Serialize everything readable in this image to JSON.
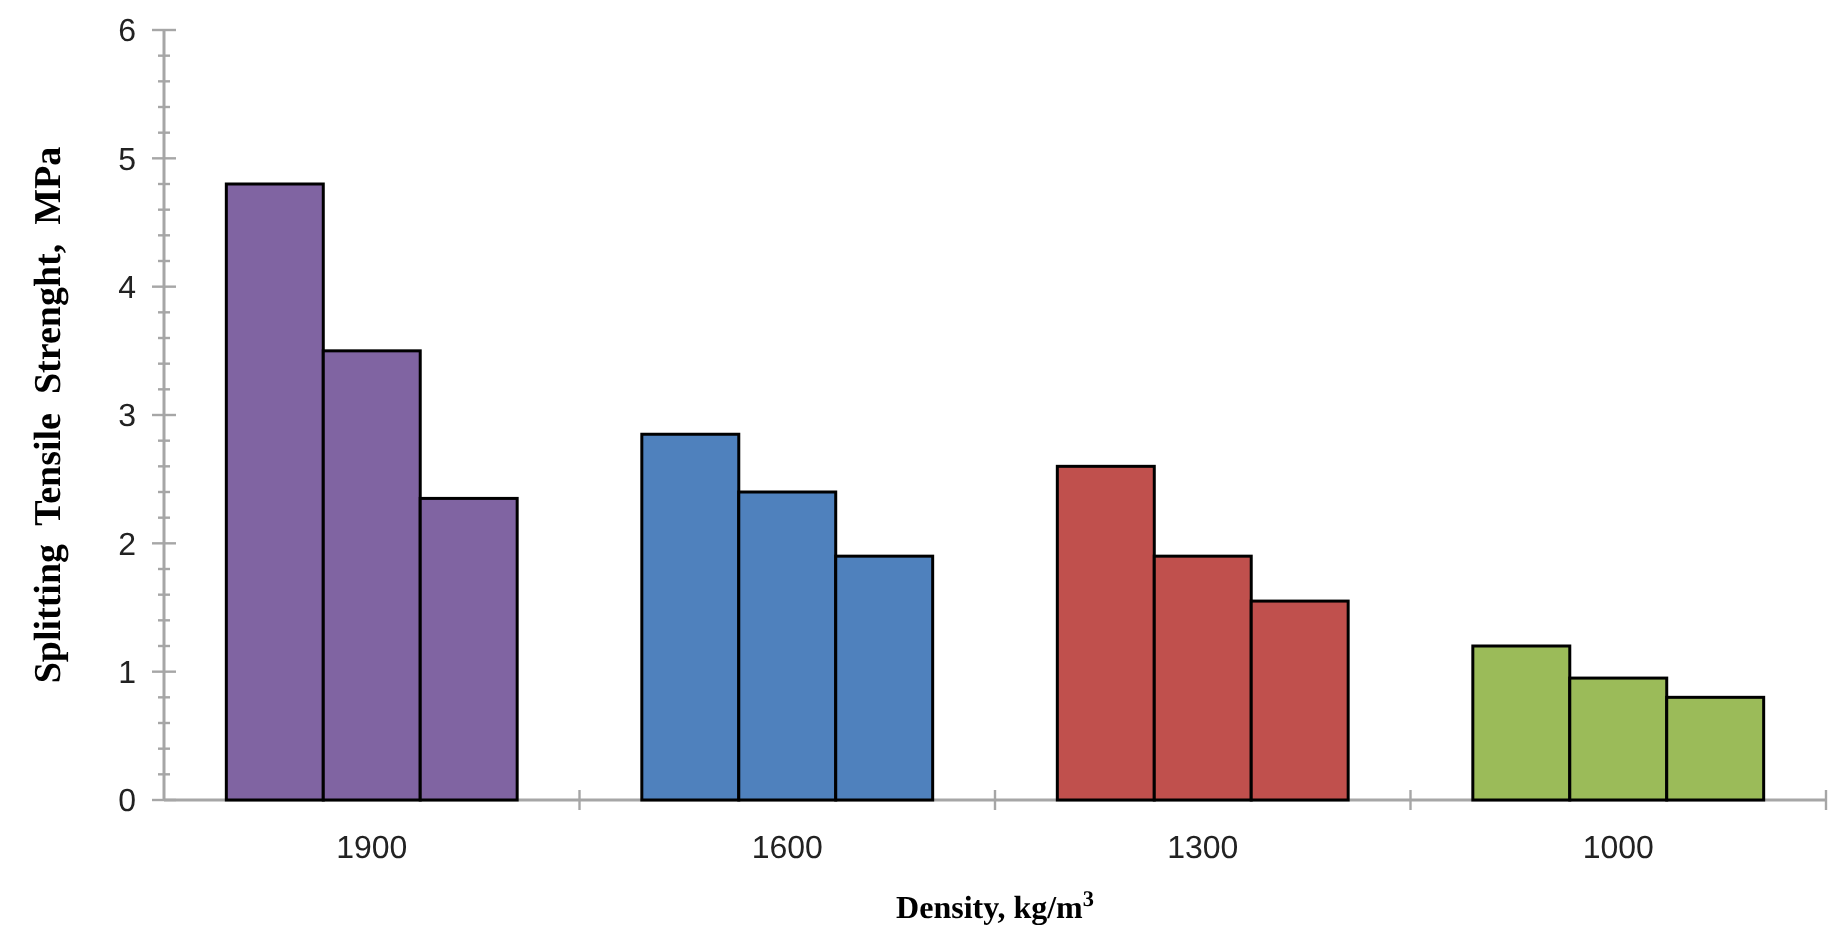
{
  "chart_data": {
    "type": "bar",
    "xlabel": "Density, kg/m$^{3}$",
    "ylabel": "Splitting  Tensile  Strenght,  MPa",
    "categories": [
      "1900",
      "1600",
      "1300",
      "1000"
    ],
    "series": [
      {
        "colors": [
          "#8064a2",
          "#4f81bd",
          "#c0504d",
          "#9bbb59"
        ],
        "values": [
          4.8,
          2.85,
          2.6,
          1.2
        ]
      },
      {
        "colors": [
          "#8064a2",
          "#4f81bd",
          "#c0504d",
          "#9bbb59"
        ],
        "values": [
          3.5,
          2.4,
          1.9,
          0.95
        ]
      },
      {
        "colors": [
          "#8064a2",
          "#4f81bd",
          "#c0504d",
          "#9bbb59"
        ],
        "values": [
          2.35,
          1.9,
          1.55,
          0.8
        ]
      }
    ],
    "ylim": [
      0,
      6
    ],
    "yticks": [
      0,
      {
        "value": 0.2,
        "label": null
      },
      {
        "value": 0.4,
        "label": null
      },
      {
        "value": 0.6,
        "label": null
      },
      {
        "value": 0.8,
        "label": null
      },
      1,
      {
        "value": 1.2,
        "label": null
      },
      {
        "value": 1.4,
        "label": null
      },
      {
        "value": 1.6,
        "label": null
      },
      {
        "value": 1.8,
        "label": null
      },
      2,
      {
        "value": 2.2,
        "label": null
      },
      {
        "value": 2.4,
        "label": null
      },
      {
        "value": 2.6,
        "label": null
      },
      {
        "value": 2.8,
        "label": null
      },
      3,
      {
        "value": 3.2,
        "label": null
      },
      {
        "value": 3.4,
        "label": null
      },
      {
        "value": 3.6,
        "label": null
      },
      {
        "value": 3.8,
        "label": null
      },
      4,
      {
        "value": 4.2,
        "label": null
      },
      {
        "value": 4.4,
        "label": null
      },
      {
        "value": 4.6,
        "label": null
      },
      {
        "value": 4.8,
        "label": null
      },
      5,
      {
        "value": 5.2,
        "label": null
      },
      {
        "value": 5.4,
        "label": null
      },
      {
        "value": 5.6,
        "label": null
      },
      {
        "value": 5.8,
        "label": null
      },
      6
    ],
    "grid": false
  }
}
